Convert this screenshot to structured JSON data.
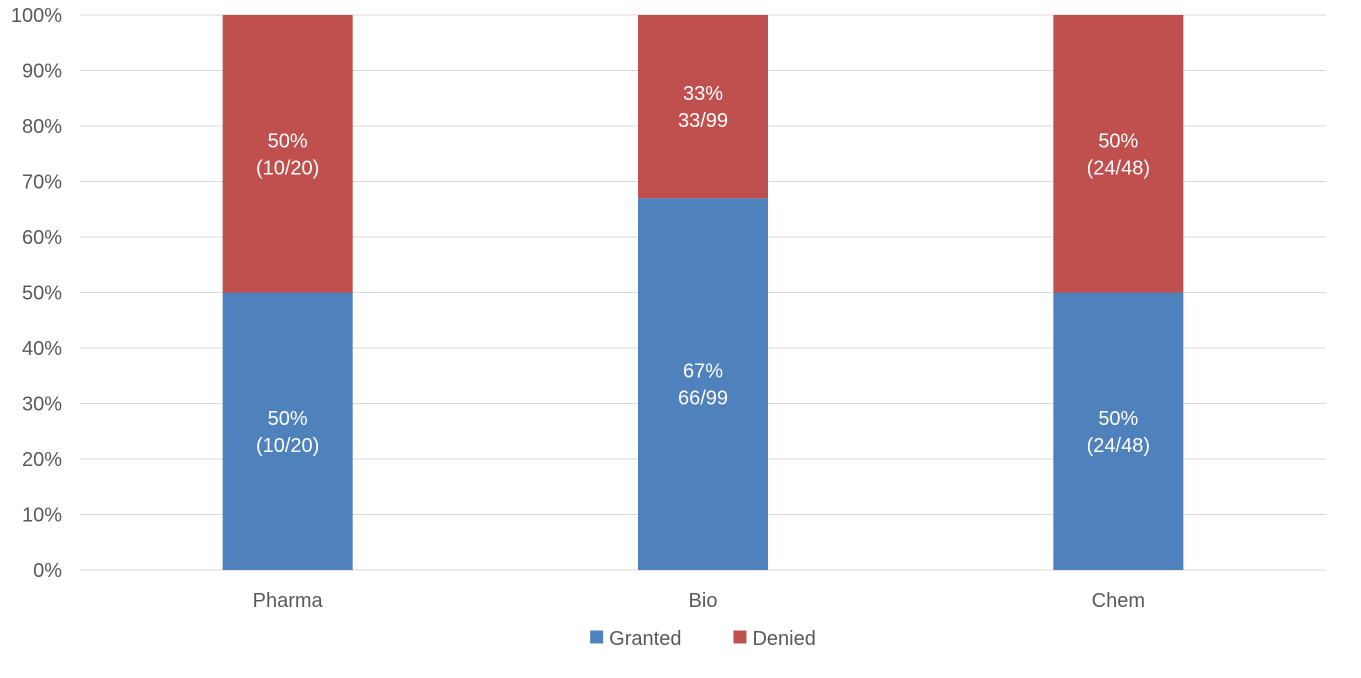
{
  "chart_data": {
    "type": "bar",
    "stacked": true,
    "percent_stacked": true,
    "categories": [
      "Pharma",
      "Bio",
      "Chem"
    ],
    "series": [
      {
        "name": "Granted",
        "color": "#4f81bd",
        "values": [
          50,
          67,
          50
        ],
        "labels": [
          [
            "50%",
            "(10/20)"
          ],
          [
            "67%",
            "66/99"
          ],
          [
            "50%",
            "(24/48)"
          ]
        ]
      },
      {
        "name": "Denied",
        "color": "#c0504d",
        "values": [
          50,
          33,
          50
        ],
        "labels": [
          [
            "50%",
            "(10/20)"
          ],
          [
            "33%",
            "33/99"
          ],
          [
            "50%",
            "(24/48)"
          ]
        ]
      }
    ],
    "y_ticks": [
      "0%",
      "10%",
      "20%",
      "30%",
      "40%",
      "50%",
      "60%",
      "70%",
      "80%",
      "90%",
      "100%"
    ],
    "ylim": [
      0,
      100
    ],
    "grid": true,
    "legend_position": "bottom",
    "title": "",
    "xlabel": "",
    "ylabel": "",
    "gridline_color": "#d9d9d9",
    "axis_line_color": "#d9d9d9"
  }
}
